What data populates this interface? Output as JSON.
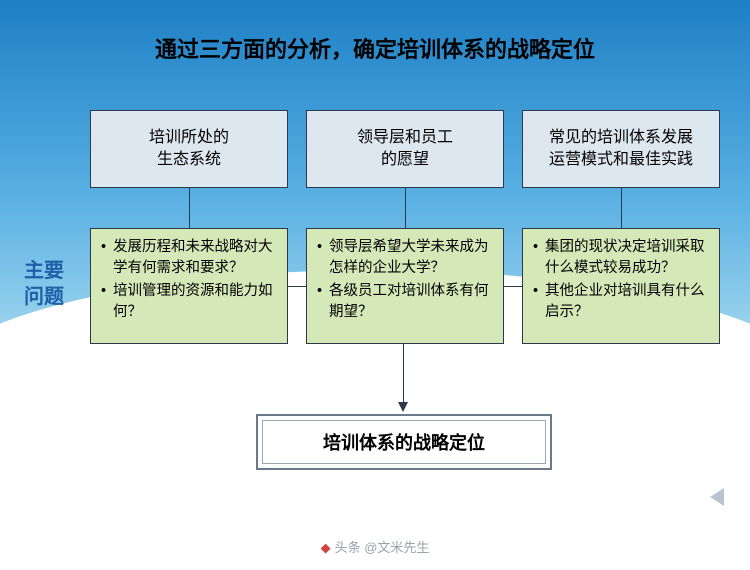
{
  "title": "通过三方面的分析，确定培训体系的战略定位",
  "side_label_l1": "主要",
  "side_label_l2": "问题",
  "cols": [
    {
      "head_l1": "培训所处的",
      "head_l2": "生态系统",
      "q": [
        "发展历程和未来战略对大学有何需求和要求？",
        "培训管理的资源和能力如何？"
      ]
    },
    {
      "head_l1": "领导层和员工",
      "head_l2": "的愿望",
      "q": [
        "领导层希望大学未来成为怎样的企业大学？",
        "各级员工对培训体系有何期望？"
      ]
    },
    {
      "head_l1": "常见的培训体系发展",
      "head_l2": "运营模式和最佳实践",
      "q": [
        "集团的现状决定培训采取什么模式较易成功？",
        "其他企业对培训具有什么启示？"
      ]
    }
  ],
  "bottom": "培训体系的战略定位",
  "watermark": "头条 @文米先生",
  "colors": {
    "top_box_bg": "#dde7f0",
    "q_box_bg": "#d5e8b8",
    "border": "#2a3a4a",
    "side_label": "#1f5fa8"
  }
}
